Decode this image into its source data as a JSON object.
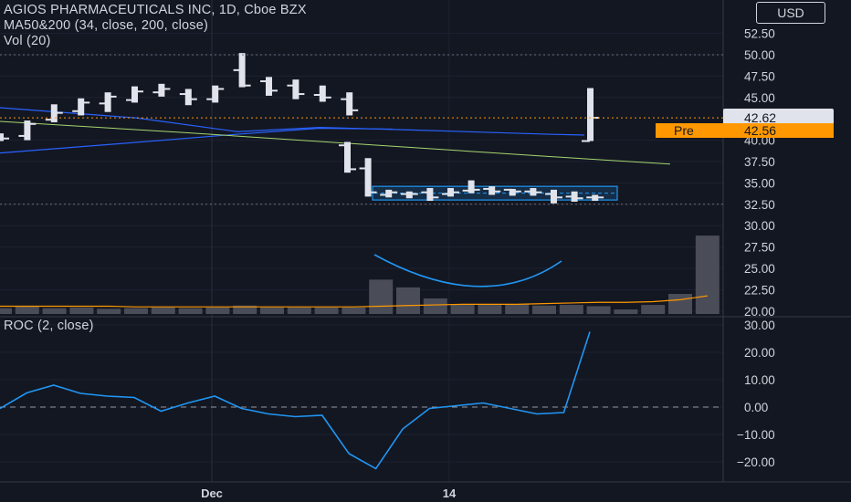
{
  "header": {
    "title": "AGIOS PHARMACEUTICALS INC, 1D, Cboe BZX",
    "ma_label": "MA50&200 (34, close, 200, close)",
    "vol_label": "Vol (20)",
    "roc_label": "ROC (2, close)",
    "currency": "USD"
  },
  "price_axis": {
    "ticks": [
      "52.50",
      "50.00",
      "47.50",
      "45.00",
      "40.00",
      "37.50",
      "35.00",
      "32.50",
      "30.00",
      "27.50",
      "25.00",
      "22.50",
      "20.00"
    ],
    "last_price": "42.62",
    "pre_label": "Pre",
    "pre_price": "42.56"
  },
  "roc_axis": {
    "ticks": [
      "30.00",
      "20.00",
      "10.00",
      "0.00",
      "−10.00",
      "−20.00"
    ]
  },
  "x_axis": {
    "labels": [
      "Dec",
      "14"
    ]
  },
  "colors": {
    "background": "#131722",
    "bar": "#e0e3eb",
    "ma_fast": "#2962ff",
    "ma_slow": "#a5d66f",
    "volume": "#4a4d57",
    "volume_ma": "#ff9800",
    "roc": "#2196f3",
    "channel": "#2196f3",
    "pre_tag": "#ff9800",
    "last_tag": "#e0e3eb"
  },
  "chart_data": {
    "type": "ohlc",
    "price_range": [
      18.75,
      53.5
    ],
    "bars": [
      {
        "open": 40.3,
        "high": 40.8,
        "low": 39.9,
        "close": 40.2
      },
      {
        "open": 40.5,
        "high": 42.3,
        "low": 40.0,
        "close": 41.9
      },
      {
        "open": 42.4,
        "high": 44.2,
        "low": 42.1,
        "close": 43.2
      },
      {
        "open": 43.4,
        "high": 44.9,
        "low": 42.9,
        "close": 44.4
      },
      {
        "open": 44.3,
        "high": 45.6,
        "low": 43.3,
        "close": 45.1
      },
      {
        "open": 44.7,
        "high": 46.3,
        "low": 44.4,
        "close": 45.7
      },
      {
        "open": 45.6,
        "high": 46.6,
        "low": 45.1,
        "close": 46.0
      },
      {
        "open": 45.4,
        "high": 46.0,
        "low": 44.1,
        "close": 44.8
      },
      {
        "open": 44.8,
        "high": 46.4,
        "low": 44.4,
        "close": 46.0
      },
      {
        "open": 48.2,
        "high": 50.2,
        "low": 46.2,
        "close": 46.4
      },
      {
        "open": 46.9,
        "high": 47.4,
        "low": 45.2,
        "close": 45.8
      },
      {
        "open": 46.4,
        "high": 47.1,
        "low": 44.8,
        "close": 45.4
      },
      {
        "open": 45.3,
        "high": 46.4,
        "low": 44.5,
        "close": 45.0
      },
      {
        "open": 44.8,
        "high": 45.6,
        "low": 42.9,
        "close": 43.5
      },
      {
        "open": 39.4,
        "high": 39.8,
        "low": 36.2,
        "close": 36.6
      },
      {
        "open": 36.7,
        "high": 37.9,
        "low": 33.4,
        "close": 33.9
      },
      {
        "open": 33.6,
        "high": 34.2,
        "low": 33.3,
        "close": 33.9
      },
      {
        "open": 33.7,
        "high": 34.0,
        "low": 33.2,
        "close": 33.7
      },
      {
        "open": 33.9,
        "high": 34.4,
        "low": 32.9,
        "close": 33.3
      },
      {
        "open": 33.7,
        "high": 34.4,
        "low": 33.4,
        "close": 33.9
      },
      {
        "open": 34.1,
        "high": 35.3,
        "low": 33.8,
        "close": 34.2
      },
      {
        "open": 34.3,
        "high": 34.6,
        "low": 33.6,
        "close": 34.0
      },
      {
        "open": 34.2,
        "high": 34.3,
        "low": 33.5,
        "close": 34.0
      },
      {
        "open": 34.0,
        "high": 34.4,
        "low": 33.5,
        "close": 33.9
      },
      {
        "open": 33.7,
        "high": 34.2,
        "low": 32.6,
        "close": 33.3
      },
      {
        "open": 33.4,
        "high": 34.0,
        "low": 32.8,
        "close": 33.2
      },
      {
        "open": 33.3,
        "high": 33.6,
        "low": 32.9,
        "close": 33.3
      },
      {
        "open": 39.9,
        "high": 46.1,
        "low": 39.9,
        "close": 42.62
      }
    ],
    "ma_fast": [
      42.9,
      42.8,
      42.75,
      42.7,
      42.6,
      42.5,
      42.4,
      42.3,
      42.2,
      42.1,
      42.0,
      41.9,
      41.8,
      41.7,
      41.5,
      41.35,
      41.2,
      41.1,
      41.0,
      40.9,
      40.8,
      40.7,
      40.6
    ],
    "ma_slow": [
      42.0,
      41.6,
      41.0,
      40.6,
      40.2,
      39.8,
      39.4,
      39.1,
      38.8,
      38.5,
      38.2,
      37.9,
      37.5
    ],
    "volume": [
      0.9,
      1.2,
      0.9,
      1.0,
      0.8,
      0.9,
      1.0,
      0.9,
      1.0,
      1.3,
      1.0,
      1.0,
      1.0,
      1.0,
      5.3,
      4.1,
      2.4,
      1.4,
      1.4,
      1.5,
      1.3,
      1.4,
      1.2,
      0.7,
      1.4,
      3.1,
      12.1
    ],
    "volume_ma": [
      1.2,
      1.2,
      1.2,
      1.2,
      1.2,
      1.1,
      1.1,
      1.1,
      1.1,
      1.1,
      1.1,
      1.1,
      1.1,
      1.1,
      1.2,
      1.3,
      1.4,
      1.5,
      1.5,
      1.5,
      1.6,
      1.7,
      1.8,
      1.8,
      1.9,
      2.2,
      2.8
    ],
    "roc": [
      -0.5,
      5.2,
      8.0,
      5.0,
      4.0,
      3.5,
      -1.5,
      1.5,
      4.0,
      -0.5,
      -2.5,
      -3.5,
      -3.0,
      -17.0,
      -22.5,
      -8.0,
      -0.5,
      0.5,
      1.5,
      -0.5,
      -2.5,
      -2.0,
      27.5
    ],
    "roc_range": [
      -25.5,
      33
    ],
    "hline": 32.5
  }
}
